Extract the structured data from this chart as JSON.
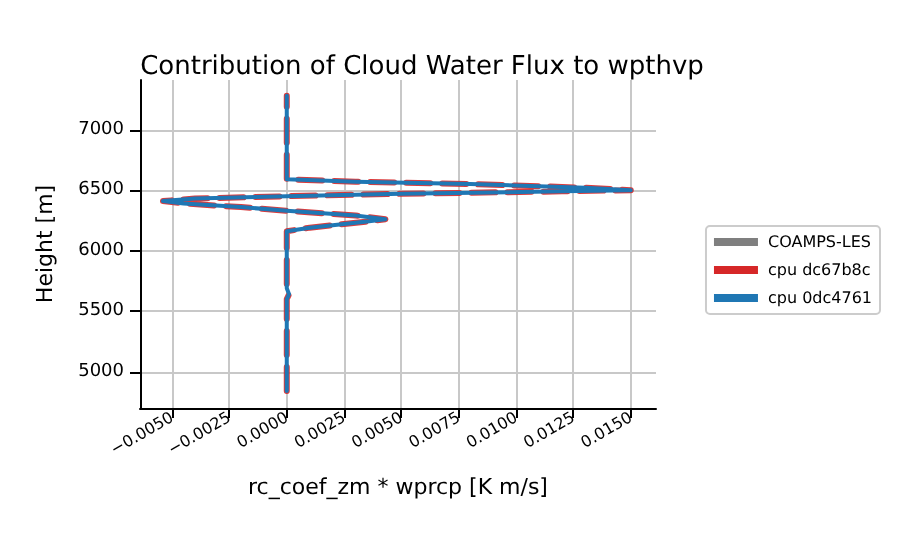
{
  "chart_data": {
    "type": "line",
    "title": "Contribution of Cloud Water Flux to wpthvp",
    "xlabel": "rc_coef_zm * wprcp [K m/s]",
    "ylabel": "Height [m]",
    "xlim": [
      -0.0064,
      0.0161
    ],
    "ylim": [
      4700,
      7410
    ],
    "xticks": [
      {
        "value": -0.005,
        "label": "−0.0050"
      },
      {
        "value": -0.0025,
        "label": "−0.0025"
      },
      {
        "value": 0,
        "label": "0.0000"
      },
      {
        "value": 0.0025,
        "label": "0.0025"
      },
      {
        "value": 0.005,
        "label": "0.0050"
      },
      {
        "value": 0.0075,
        "label": "0.0075"
      },
      {
        "value": 0.01,
        "label": "0.0100"
      },
      {
        "value": 0.0125,
        "label": "0.0125"
      },
      {
        "value": 0.015,
        "label": "0.0150"
      }
    ],
    "yticks": [
      5000,
      5500,
      6000,
      6500,
      7000
    ],
    "grid": true,
    "legend": "right",
    "marker": "none",
    "series": [
      {
        "name": "COAMPS-LES",
        "color": "#7f7f7f",
        "line_style": "solid"
      },
      {
        "name": "cpu dc67b8c",
        "color": "#d62728",
        "line_style": "dashed",
        "x": [
          0,
          0,
          0.0001,
          0,
          0,
          0.001,
          0.0035,
          0.0043,
          0.003,
          0,
          -0.002,
          -0.0045,
          -0.0054,
          -0.004,
          0,
          0.005,
          0.012,
          0.015,
          0.013,
          0.008,
          0.003,
          0,
          0
        ],
        "values": [
          4840,
          5600,
          5640,
          5690,
          6160,
          6190,
          6240,
          6260,
          6290,
          6330,
          6360,
          6390,
          6410,
          6430,
          6450,
          6470,
          6490,
          6500,
          6520,
          6550,
          6570,
          6590,
          7280
        ]
      },
      {
        "name": "cpu 0dc4761",
        "color": "#1f77b4",
        "line_style": "solid",
        "x": [
          0,
          0,
          0.0001,
          0,
          0,
          0.001,
          0.0035,
          0.0043,
          0.003,
          0,
          -0.002,
          -0.0045,
          -0.0054,
          -0.004,
          0,
          0.005,
          0.012,
          0.015,
          0.013,
          0.008,
          0.003,
          0,
          0
        ],
        "values": [
          4840,
          5600,
          5640,
          5690,
          6160,
          6190,
          6240,
          6260,
          6290,
          6330,
          6360,
          6390,
          6410,
          6430,
          6450,
          6470,
          6490,
          6500,
          6520,
          6550,
          6570,
          6590,
          7280
        ]
      }
    ]
  }
}
